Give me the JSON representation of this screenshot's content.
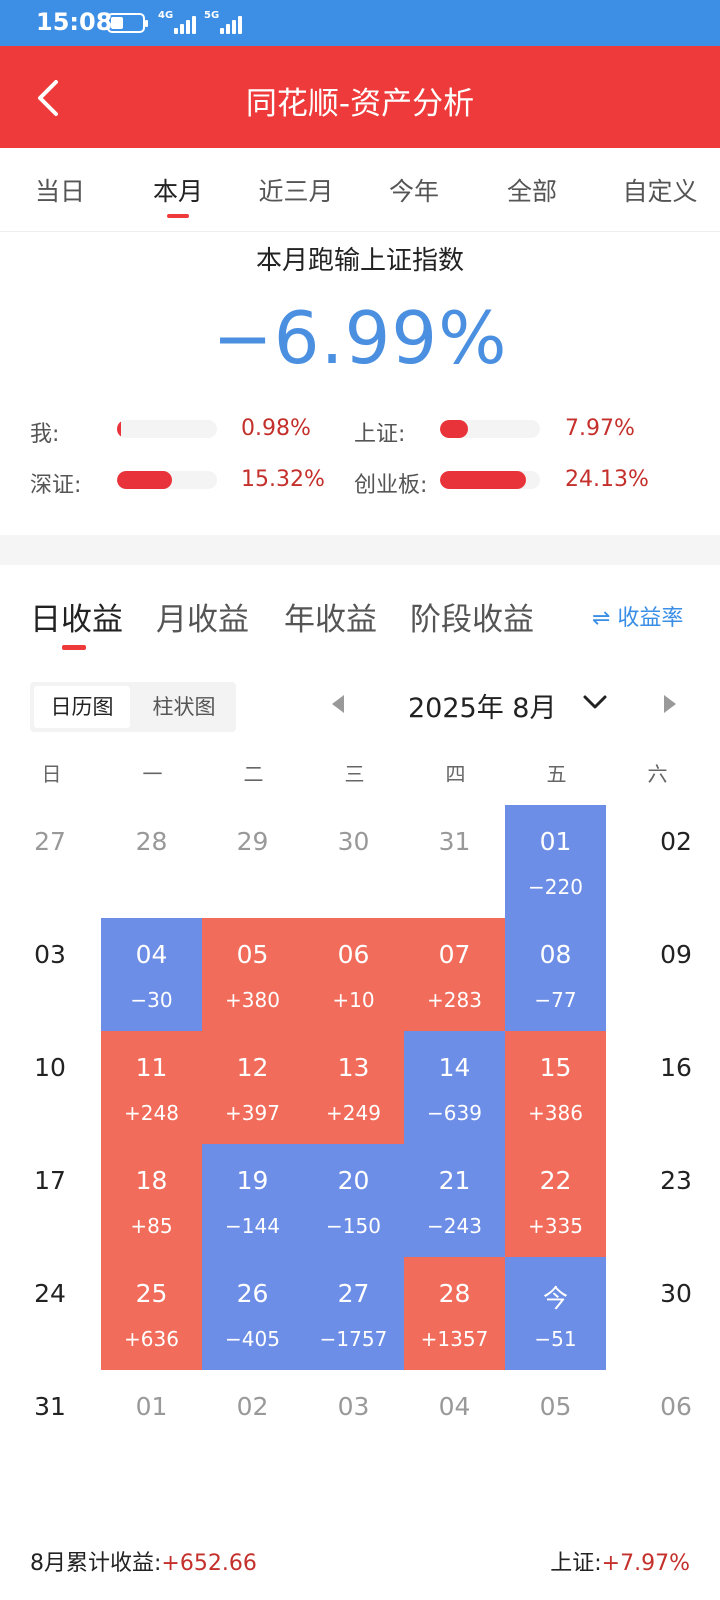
{
  "status": {
    "time": "15:08",
    "net1": "4G",
    "net2": "5G"
  },
  "header": {
    "title": "同花顺-资产分析"
  },
  "range_tabs": [
    "当日",
    "本月",
    "近三月",
    "今年",
    "全部",
    "自定义"
  ],
  "range_active": 1,
  "summary": {
    "headline": "本月跑输上证指数",
    "diff": "−6.99%"
  },
  "comparisons": [
    {
      "label": "我:",
      "value": "0.98%",
      "level": 0.98
    },
    {
      "label": "上证:",
      "value": "7.97%",
      "level": 7.97
    },
    {
      "label": "深证:",
      "value": "15.32%",
      "level": 15.32
    },
    {
      "label": "创业板:",
      "value": "24.13%",
      "level": 24.13
    }
  ],
  "income_tabs": [
    "日收益",
    "月收益",
    "年收益",
    "阶段收益"
  ],
  "income_active": 0,
  "rate_toggle": "⇌ 收益率",
  "view_switch": [
    "日历图",
    "柱状图"
  ],
  "month": {
    "label": "2025年 8月"
  },
  "weekdays": [
    "日",
    "一",
    "二",
    "三",
    "四",
    "五",
    "六"
  ],
  "calendar": [
    [
      {
        "d": "27",
        "k": "other"
      },
      {
        "d": "28",
        "k": "other"
      },
      {
        "d": "29",
        "k": "other"
      },
      {
        "d": "30",
        "k": "other"
      },
      {
        "d": "31",
        "k": "other"
      },
      {
        "d": "01",
        "p": "−220",
        "k": "neg"
      },
      {
        "d": "02",
        "k": "weekend"
      }
    ],
    [
      {
        "d": "03",
        "k": "weekend"
      },
      {
        "d": "04",
        "p": "−30",
        "k": "neg"
      },
      {
        "d": "05",
        "p": "+380",
        "k": "pos"
      },
      {
        "d": "06",
        "p": "+10",
        "k": "pos"
      },
      {
        "d": "07",
        "p": "+283",
        "k": "pos"
      },
      {
        "d": "08",
        "p": "−77",
        "k": "neg"
      },
      {
        "d": "09",
        "k": "weekend"
      }
    ],
    [
      {
        "d": "10",
        "k": "weekend"
      },
      {
        "d": "11",
        "p": "+248",
        "k": "pos"
      },
      {
        "d": "12",
        "p": "+397",
        "k": "pos"
      },
      {
        "d": "13",
        "p": "+249",
        "k": "pos"
      },
      {
        "d": "14",
        "p": "−639",
        "k": "neg"
      },
      {
        "d": "15",
        "p": "+386",
        "k": "pos"
      },
      {
        "d": "16",
        "k": "weekend"
      }
    ],
    [
      {
        "d": "17",
        "k": "weekend"
      },
      {
        "d": "18",
        "p": "+85",
        "k": "pos"
      },
      {
        "d": "19",
        "p": "−144",
        "k": "neg"
      },
      {
        "d": "20",
        "p": "−150",
        "k": "neg"
      },
      {
        "d": "21",
        "p": "−243",
        "k": "neg"
      },
      {
        "d": "22",
        "p": "+335",
        "k": "pos"
      },
      {
        "d": "23",
        "k": "weekend"
      }
    ],
    [
      {
        "d": "24",
        "k": "weekend"
      },
      {
        "d": "25",
        "p": "+636",
        "k": "pos"
      },
      {
        "d": "26",
        "p": "−405",
        "k": "neg"
      },
      {
        "d": "27",
        "p": "−1757",
        "k": "neg"
      },
      {
        "d": "28",
        "p": "+1357",
        "k": "pos"
      },
      {
        "d": "今",
        "p": "−51",
        "k": "neg"
      },
      {
        "d": "30",
        "k": "weekend"
      }
    ],
    [
      {
        "d": "31",
        "k": "weekend"
      },
      {
        "d": "01",
        "k": "other"
      },
      {
        "d": "02",
        "k": "other"
      },
      {
        "d": "03",
        "k": "other"
      },
      {
        "d": "04",
        "k": "other"
      },
      {
        "d": "05",
        "k": "other"
      },
      {
        "d": "06",
        "k": "other"
      }
    ]
  ],
  "footer": {
    "cum_label": "8月累计收益:",
    "cum_value": "+652.66",
    "index_label": "上证:",
    "index_value": "+7.97%"
  },
  "colors": {
    "header": "#ee3a3a",
    "status": "#3d8fe6",
    "gain": "#f16c5a",
    "loss": "#6d8ee6",
    "accent_text": "#4a8fe0"
  }
}
